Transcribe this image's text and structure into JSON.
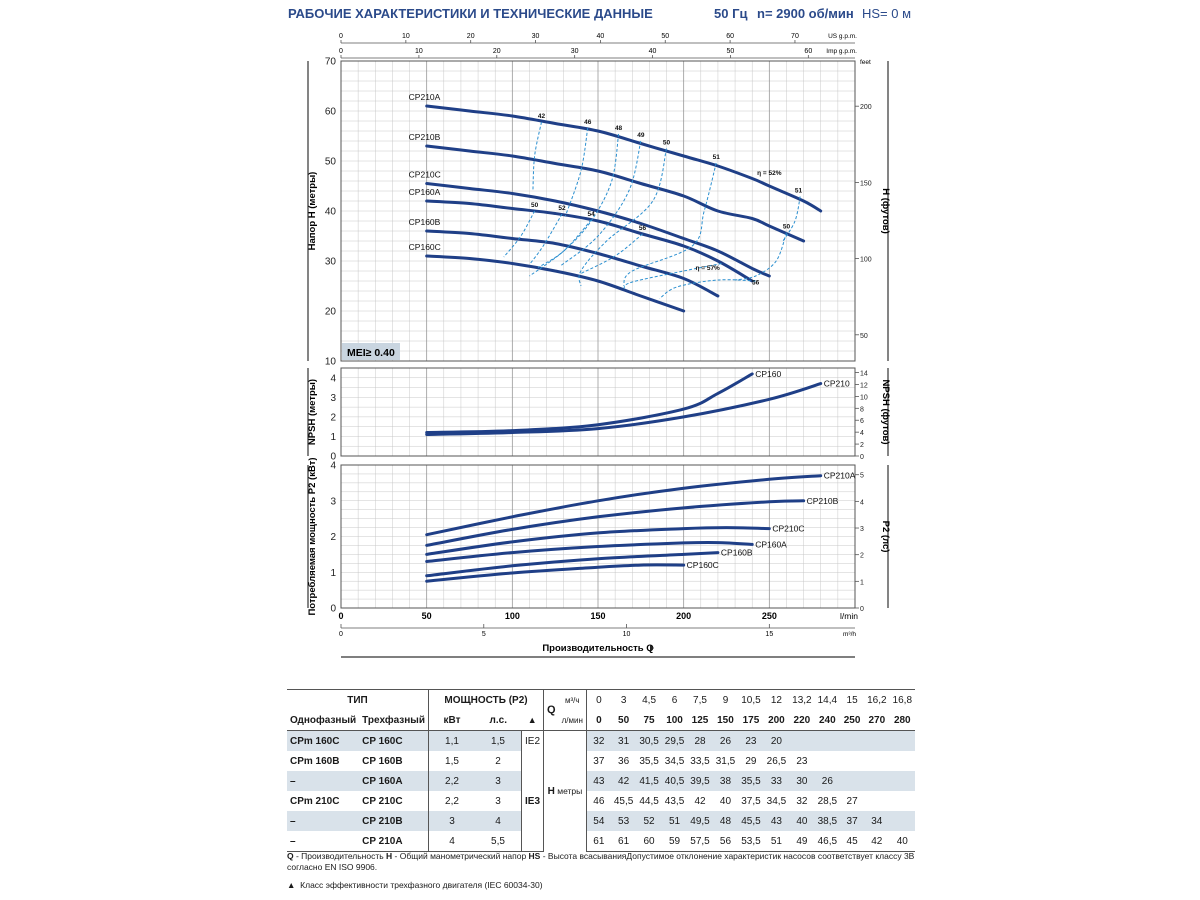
{
  "header": {
    "title": "РАБОЧИЕ ХАРАКТЕРИСТИКИ И ТЕХНИЧЕСКИЕ ДАННЫЕ",
    "freq": "50 Гц",
    "speed": "n= 2900 об/мин",
    "hs": "HS= 0 м"
  },
  "chart_data": [
    {
      "type": "line",
      "id": "head",
      "ylabel": "Напор H (метры)",
      "ylabel_right": "H (футов)",
      "y_unit_right": "feet",
      "ylim": [
        10,
        70
      ],
      "yticks": [
        10,
        20,
        30,
        40,
        50,
        60,
        70
      ],
      "yticks_right": [
        50,
        100,
        150,
        200
      ],
      "xlim": [
        0,
        300
      ],
      "top_axis_us": {
        "label": "US g.p.m.",
        "ticks": [
          0,
          10,
          20,
          30,
          40,
          50,
          60,
          70
        ]
      },
      "top_axis_imp": {
        "label": "Imp g.p.m.",
        "ticks": [
          0,
          10,
          20,
          30,
          40,
          50,
          60
        ]
      },
      "badge": "MEI≥ 0.40",
      "series": [
        {
          "name": "CP210A",
          "x": [
            50,
            75,
            100,
            125,
            150,
            175,
            200,
            220,
            240,
            250,
            270,
            280
          ],
          "y": [
            61,
            60,
            59,
            57.5,
            56,
            53.5,
            51,
            49,
            46.5,
            45,
            42,
            40
          ]
        },
        {
          "name": "CP210B",
          "x": [
            50,
            75,
            100,
            125,
            150,
            175,
            200,
            220,
            240,
            250,
            270
          ],
          "y": [
            53,
            52,
            51,
            49.5,
            48,
            45.5,
            43,
            40,
            38.5,
            37,
            34
          ]
        },
        {
          "name": "CP210C",
          "x": [
            50,
            75,
            100,
            125,
            150,
            175,
            200,
            220,
            240,
            250
          ],
          "y": [
            45.5,
            44.5,
            43.5,
            42,
            40,
            37.5,
            34.5,
            32,
            28.5,
            27
          ]
        },
        {
          "name": "CP160A",
          "x": [
            50,
            75,
            100,
            125,
            150,
            175,
            200,
            220,
            240
          ],
          "y": [
            42,
            41.5,
            40.5,
            39.5,
            38,
            35.5,
            33,
            30,
            26
          ]
        },
        {
          "name": "CP160B",
          "x": [
            50,
            75,
            100,
            125,
            150,
            175,
            200,
            220
          ],
          "y": [
            36,
            35.5,
            34.5,
            33.5,
            31.5,
            29,
            26.5,
            23
          ]
        },
        {
          "name": "CP160C",
          "x": [
            50,
            75,
            100,
            125,
            150,
            175,
            200
          ],
          "y": [
            31,
            30.5,
            29.5,
            28,
            26,
            23,
            20
          ]
        }
      ],
      "efficiency_labels": [
        {
          "text": "42",
          "x": 117,
          "y": 58.6
        },
        {
          "text": "46",
          "x": 144,
          "y": 57.4
        },
        {
          "text": "48",
          "x": 162,
          "y": 56.2
        },
        {
          "text": "49",
          "x": 175,
          "y": 54.8
        },
        {
          "text": "50",
          "x": 190,
          "y": 53.3
        },
        {
          "text": "51",
          "x": 219,
          "y": 50.4
        },
        {
          "text": "η = 52%",
          "x": 250,
          "y": 47.2
        },
        {
          "text": "51",
          "x": 267,
          "y": 43.7
        },
        {
          "text": "50",
          "x": 260,
          "y": 36.5
        },
        {
          "text": "50",
          "x": 113,
          "y": 40.8
        },
        {
          "text": "52",
          "x": 129,
          "y": 40.2
        },
        {
          "text": "54",
          "x": 146,
          "y": 39.0
        },
        {
          "text": "56",
          "x": 176,
          "y": 36.2
        },
        {
          "text": "η = 57%",
          "x": 214,
          "y": 28.2
        },
        {
          "text": "56",
          "x": 242,
          "y": 25.3
        }
      ],
      "efficiency_lines": [
        [
          [
            117,
            57.8
          ],
          [
            113,
            51
          ],
          [
            112,
            44
          ]
        ],
        [
          [
            144,
            56.6
          ],
          [
            140,
            48
          ],
          [
            131,
            39
          ]
        ],
        [
          [
            162,
            55.4
          ],
          [
            158,
            46
          ],
          [
            146,
            38
          ],
          [
            130,
            32
          ],
          [
            110,
            27
          ]
        ],
        [
          [
            175,
            54.0
          ],
          [
            168,
            44
          ],
          [
            150,
            35
          ],
          [
            128,
            29
          ]
        ],
        [
          [
            190,
            52.5
          ],
          [
            182,
            42
          ],
          [
            155,
            34
          ],
          [
            140,
            28
          ],
          [
            140,
            25
          ]
        ],
        [
          [
            219,
            49.6
          ],
          [
            212,
            40
          ],
          [
            205,
            33
          ],
          [
            170,
            28
          ],
          [
            165,
            25
          ]
        ],
        [
          [
            268,
            42.9
          ],
          [
            265,
            38
          ],
          [
            258,
            34
          ]
        ],
        [
          [
            260,
            35.7
          ],
          [
            254,
            30
          ],
          [
            242,
            27
          ],
          [
            230,
            26.2
          ]
        ],
        [
          [
            113,
            40.0
          ],
          [
            105,
            35
          ],
          [
            95,
            30.8
          ]
        ],
        [
          [
            129,
            39.4
          ],
          [
            118,
            33
          ],
          [
            110,
            29.3
          ]
        ],
        [
          [
            146,
            38.2
          ],
          [
            130,
            32
          ],
          [
            115,
            28.7
          ]
        ],
        [
          [
            176,
            35.4
          ],
          [
            160,
            31
          ],
          [
            140,
            27.5
          ]
        ],
        [
          [
            222,
            29.5
          ],
          [
            200,
            28
          ],
          [
            170,
            25.8
          ],
          [
            165,
            24.5
          ]
        ],
        [
          [
            242,
            26.0
          ],
          [
            220,
            26.2
          ],
          [
            196,
            24.8
          ],
          [
            186,
            22.5
          ]
        ]
      ]
    },
    {
      "type": "line",
      "id": "npsh",
      "ylabel": "NPSH (метры)",
      "ylabel_right": "NPSH (футов)",
      "ylim": [
        0,
        4.5
      ],
      "yticks": [
        0,
        1,
        2,
        3,
        4
      ],
      "yticks_right": [
        0,
        2,
        4,
        6,
        8,
        10,
        12,
        14
      ],
      "xlim": [
        0,
        300
      ],
      "series": [
        {
          "name": "CP160",
          "x": [
            50,
            100,
            150,
            200,
            220,
            240
          ],
          "y": [
            1.2,
            1.3,
            1.6,
            2.4,
            3.2,
            4.2
          ]
        },
        {
          "name": "CP210",
          "x": [
            50,
            100,
            150,
            200,
            250,
            280
          ],
          "y": [
            1.1,
            1.2,
            1.4,
            2.0,
            2.9,
            3.7
          ]
        }
      ]
    },
    {
      "type": "line",
      "id": "power",
      "ylabel": "Потребляемая мощность P2 (кВт)",
      "ylabel_right": "P2 (лс)",
      "ylim": [
        0,
        4
      ],
      "yticks": [
        0,
        1,
        2,
        3,
        4
      ],
      "yticks_right": [
        0,
        1,
        2,
        3,
        4,
        5
      ],
      "xlim": [
        0,
        300
      ],
      "xticks_lmin": [
        0,
        50,
        100,
        150,
        200,
        250
      ],
      "x_unit": "l/min",
      "xticks_m3h": [
        0,
        5,
        10,
        15
      ],
      "x2_unit": "m³/h",
      "xlabel": "Производительность Q",
      "series": [
        {
          "name": "CP210A",
          "x": [
            50,
            100,
            150,
            200,
            250,
            280
          ],
          "y": [
            2.05,
            2.55,
            3.0,
            3.35,
            3.6,
            3.7
          ]
        },
        {
          "name": "CP210B",
          "x": [
            50,
            100,
            150,
            200,
            250,
            270
          ],
          "y": [
            1.75,
            2.2,
            2.55,
            2.8,
            2.97,
            3.0
          ]
        },
        {
          "name": "CP210C",
          "x": [
            50,
            100,
            150,
            200,
            225,
            250
          ],
          "y": [
            1.5,
            1.85,
            2.1,
            2.22,
            2.25,
            2.22
          ]
        },
        {
          "name": "CP160A",
          "x": [
            50,
            100,
            150,
            200,
            220,
            240
          ],
          "y": [
            1.3,
            1.55,
            1.72,
            1.82,
            1.83,
            1.78
          ]
        },
        {
          "name": "CP160B",
          "x": [
            50,
            100,
            150,
            200,
            220
          ],
          "y": [
            0.9,
            1.18,
            1.38,
            1.5,
            1.55
          ]
        },
        {
          "name": "CP160C",
          "x": [
            50,
            100,
            150,
            175,
            200
          ],
          "y": [
            0.75,
            0.98,
            1.14,
            1.2,
            1.2
          ]
        }
      ]
    }
  ],
  "table": {
    "headers": {
      "type": "ТИП",
      "power": "МОЩНОСТЬ (P2)",
      "single": "Однофазный",
      "three": "Трехфазный",
      "kw": "кВт",
      "hp": "л.с.",
      "ie_symbol": "▲",
      "q": "Q",
      "m3h": "м³/ч",
      "lmin": "л/мин",
      "h": "H",
      "h_unit": "метры"
    },
    "q_m3h": [
      "0",
      "3",
      "4,5",
      "6",
      "7,5",
      "9",
      "10,5",
      "12",
      "13,2",
      "14,4",
      "15",
      "16,2",
      "16,8"
    ],
    "q_lmin": [
      "0",
      "50",
      "75",
      "100",
      "125",
      "150",
      "175",
      "200",
      "220",
      "240",
      "250",
      "270",
      "280"
    ],
    "rows": [
      {
        "single": "CPm 160C",
        "three": "CP 160C",
        "kw": "1,1",
        "hp": "1,5",
        "ie": "IE2",
        "h": [
          "32",
          "31",
          "30,5",
          "29,5",
          "28",
          "26",
          "23",
          "20",
          "",
          "",
          "",
          "",
          ""
        ]
      },
      {
        "single": "CPm 160B",
        "three": "CP 160B",
        "kw": "1,5",
        "hp": "2",
        "ie": "",
        "h": [
          "37",
          "36",
          "35,5",
          "34,5",
          "33,5",
          "31,5",
          "29",
          "26,5",
          "23",
          "",
          "",
          "",
          ""
        ]
      },
      {
        "single": "–",
        "three": "CP 160A",
        "kw": "2,2",
        "hp": "3",
        "ie": "",
        "h": [
          "43",
          "42",
          "41,5",
          "40,5",
          "39,5",
          "38",
          "35,5",
          "33",
          "30",
          "26",
          "",
          "",
          ""
        ]
      },
      {
        "single": "CPm 210C",
        "three": "CP 210C",
        "kw": "2,2",
        "hp": "3",
        "ie": "IE3",
        "h": [
          "46",
          "45,5",
          "44,5",
          "43,5",
          "42",
          "40",
          "37,5",
          "34,5",
          "32",
          "28,5",
          "27",
          "",
          ""
        ]
      },
      {
        "single": "–",
        "three": "CP 210B",
        "kw": "3",
        "hp": "4",
        "ie": "",
        "h": [
          "54",
          "53",
          "52",
          "51",
          "49,5",
          "48",
          "45,5",
          "43",
          "40",
          "38,5",
          "37",
          "34",
          ""
        ]
      },
      {
        "single": "–",
        "three": "CP 210A",
        "kw": "4",
        "hp": "5,5",
        "ie": "",
        "h": [
          "61",
          "61",
          "60",
          "59",
          "57,5",
          "56",
          "53,5",
          "51",
          "49",
          "46,5",
          "45",
          "42",
          "40"
        ]
      }
    ]
  },
  "notes": {
    "legend_q": "Q",
    "legend_q_text": " - Производительность  ",
    "legend_h": "H",
    "legend_h_text": " - Общий манометрический напор  ",
    "legend_hs": "HS",
    "legend_hs_text": " - Высота всасыванияДопустимое отклонение характеристик насосов соответствует классу 3B согласно EN ISO 9906.",
    "ie_note_symbol": "▲",
    "ie_note": "Класс эффективности трехфазного двигателя (IEC 60034-30)"
  },
  "colors": {
    "curve": "#1f3f87",
    "eff": "#2a8fd0",
    "grid": "#c8c8c8",
    "shade": "#d9e2ea",
    "title": "#2b4a8a"
  }
}
